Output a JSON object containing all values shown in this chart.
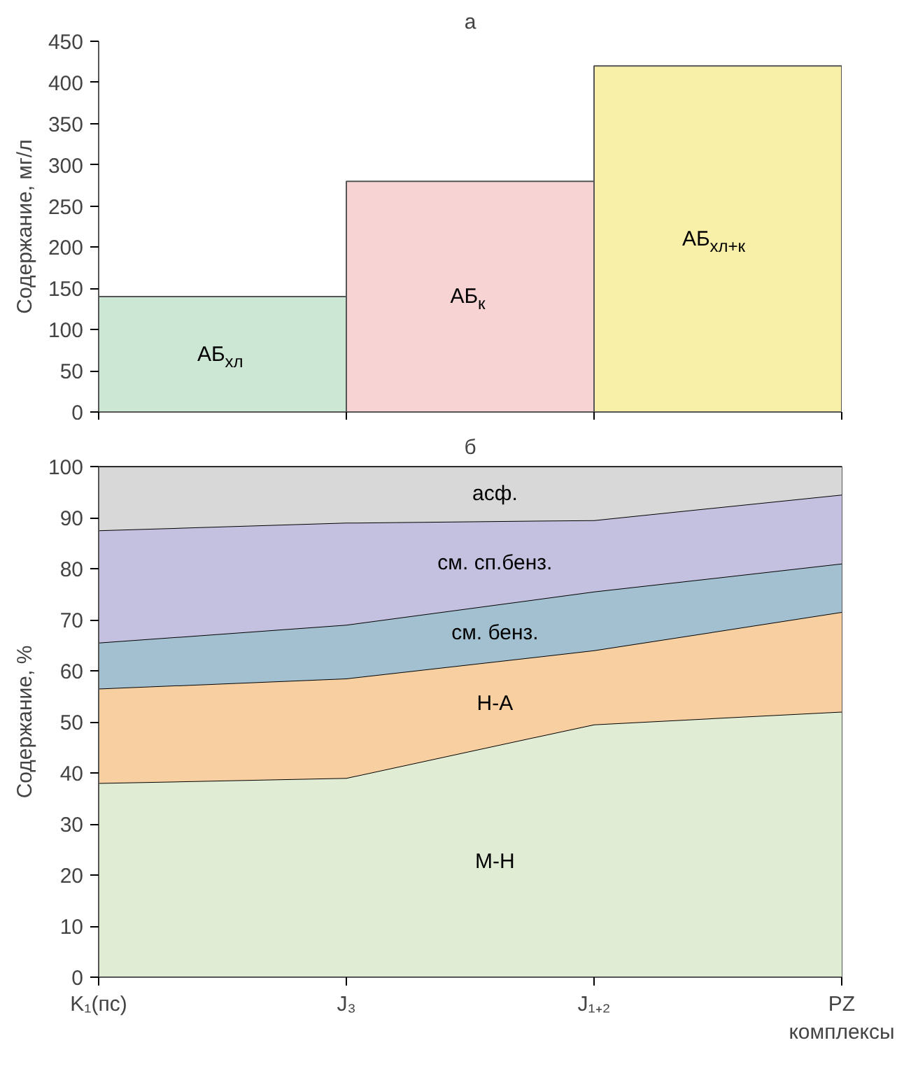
{
  "chart_data": [
    {
      "type": "bar",
      "title": "а",
      "ylabel": "Содержание, мг/л",
      "categories": [
        null,
        null,
        null
      ],
      "values": [
        140,
        280,
        420
      ],
      "colors": [
        "#cde7d5",
        "#f7d3d3",
        "#f8f0a8"
      ],
      "annotations": [
        "АБ$_{хл}$",
        "АБ$_{к}$",
        "АБ$_{хл+к}$"
      ],
      "ylim": [
        0,
        450
      ],
      "yticks": [
        0,
        50,
        100,
        150,
        200,
        250,
        300,
        350,
        400,
        450
      ],
      "tick_labels": "y",
      "grid": false
    },
    {
      "type": "area",
      "stacked": true,
      "title": "б",
      "ylabel": "Содержание, %",
      "xlabel": "комплексы",
      "categories": [
        "K₁(пс)",
        "J₃",
        "J₁₊₂",
        "PZ"
      ],
      "series": [
        {
          "name": "М-Н",
          "color": "#e0ecd4",
          "values": [
            38,
            39,
            49.5,
            52
          ]
        },
        {
          "name": "Н-А",
          "color": "#f8cfa0",
          "values": [
            18.5,
            19.5,
            14.5,
            19.5
          ]
        },
        {
          "name": "см. бенз.",
          "color": "#a2c0d0",
          "values": [
            9,
            10.5,
            11.5,
            9.5
          ]
        },
        {
          "name": "см. сп.бенз.",
          "color": "#c4c0e0",
          "values": [
            22,
            20,
            14,
            13.5
          ]
        },
        {
          "name": "асф.",
          "color": "#d8d8d8",
          "values": [
            12.5,
            11,
            10.5,
            5.5
          ]
        }
      ],
      "ylim": [
        0,
        100
      ],
      "yticks": [
        0,
        10,
        20,
        30,
        40,
        50,
        60,
        70,
        80,
        90,
        100
      ],
      "grid": false
    }
  ]
}
